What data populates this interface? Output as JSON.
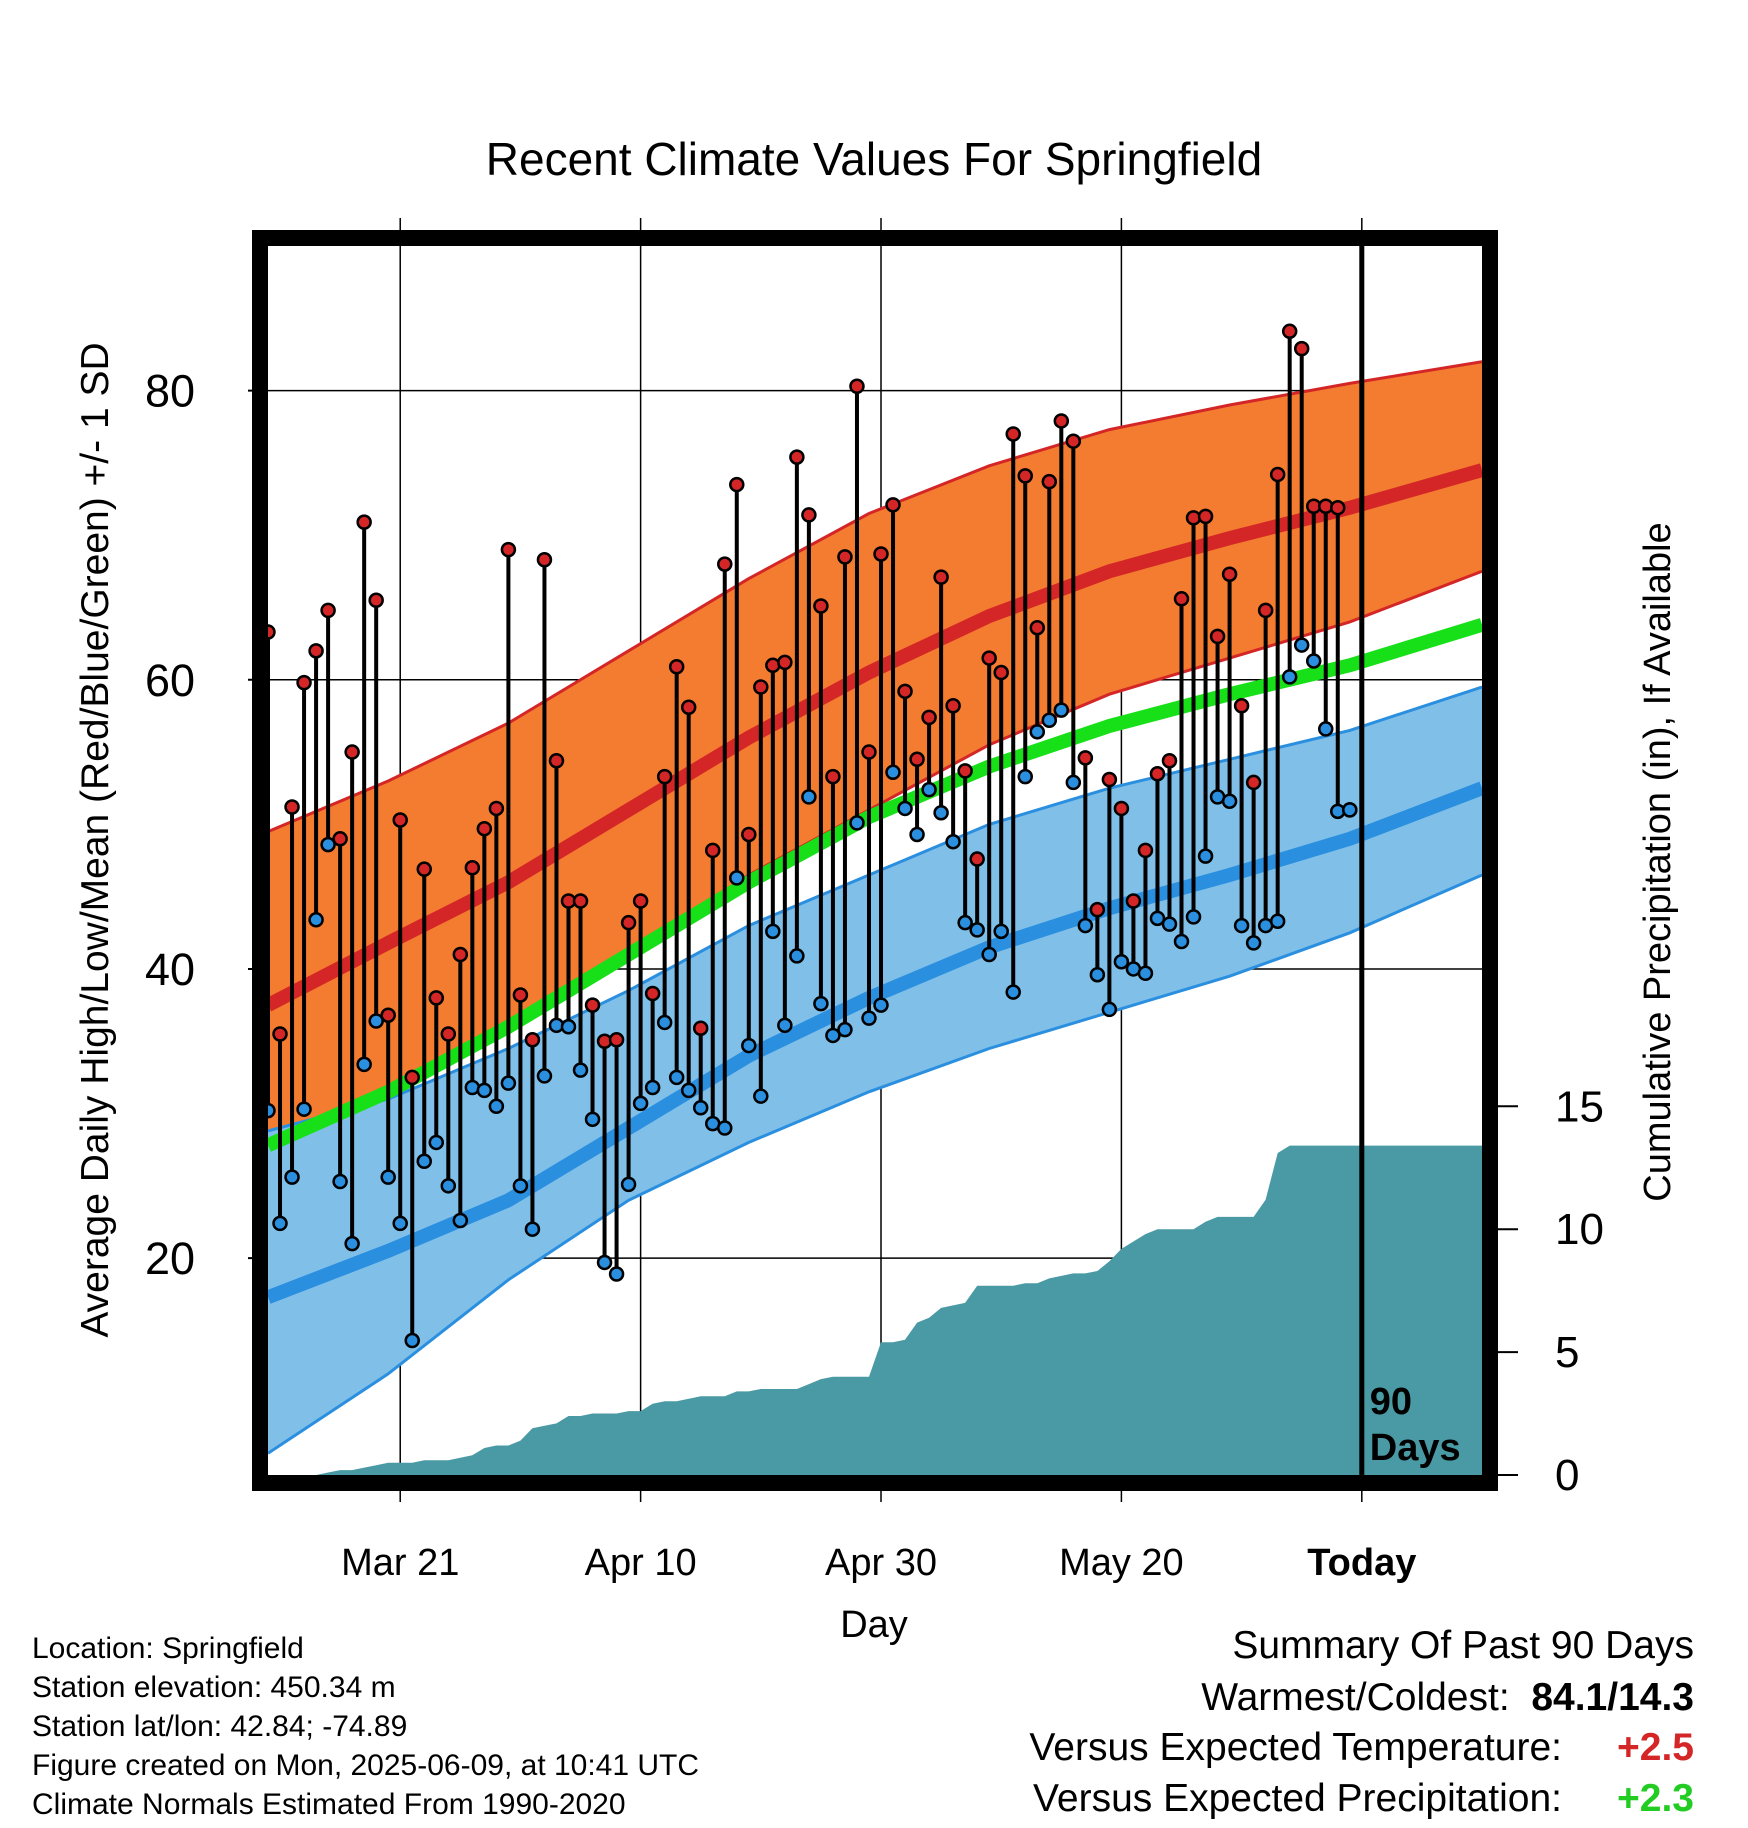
{
  "chart_data": {
    "type": "line",
    "title": "Recent Climate Values For Springfield",
    "xlabel": "Day",
    "ylabel": "Average Daily High/Low/Mean (Red/Blue/Green) +/- 1 SD",
    "y2label": "Cumulative Precipitation (in), If Available",
    "x_tick_labels": [
      "Mar 21",
      "Apr 10",
      "Apr 30",
      "May 20",
      "Today"
    ],
    "x_tick_days": [
      11,
      31,
      51,
      71,
      91
    ],
    "xlim": [
      0,
      101
    ],
    "ylim": [
      5,
      90
    ],
    "y_ticks": [
      20,
      40,
      60,
      80
    ],
    "y2lim": [
      0,
      50
    ],
    "y2_ticks": [
      0,
      5,
      10,
      15
    ],
    "today_marker_day": 91,
    "today_label": "90\nDays",
    "grid": true,
    "normals": {
      "x": [
        0,
        10,
        20,
        30,
        40,
        50,
        60,
        70,
        80,
        90,
        101
      ],
      "high_mean": [
        37.5,
        41.8,
        46.0,
        51.0,
        56.0,
        60.5,
        64.4,
        67.5,
        69.8,
        71.9,
        74.5
      ],
      "high_upper": [
        49.5,
        53.0,
        57.0,
        62.0,
        67.0,
        71.5,
        74.8,
        77.3,
        79.0,
        80.5,
        82.0
      ],
      "high_lower": [
        28.5,
        31.0,
        36.0,
        41.0,
        46.5,
        51.0,
        55.5,
        59.0,
        61.5,
        64.0,
        67.5
      ],
      "mean_line": [
        27.8,
        31.5,
        36.0,
        41.0,
        46.0,
        50.5,
        54.0,
        56.8,
        59.0,
        61.0,
        63.8
      ],
      "low_mean": [
        17.3,
        20.5,
        24.0,
        29.0,
        34.0,
        38.0,
        41.5,
        44.2,
        46.5,
        49.0,
        52.5
      ],
      "low_upper": [
        28.8,
        31.0,
        34.5,
        38.5,
        43.0,
        46.5,
        50.0,
        52.5,
        54.5,
        56.5,
        59.5
      ],
      "low_lower": [
        6.5,
        12.0,
        18.5,
        24.0,
        28.0,
        31.5,
        34.5,
        37.0,
        39.5,
        42.5,
        46.5
      ]
    },
    "series": [
      {
        "name": "High",
        "color": "#d42626",
        "x": [
          0,
          1,
          2,
          3,
          4,
          5,
          6,
          7,
          8,
          9,
          10,
          11,
          12,
          13,
          14,
          15,
          16,
          17,
          18,
          19,
          20,
          21,
          22,
          23,
          24,
          25,
          26,
          27,
          28,
          29,
          30,
          31,
          32,
          33,
          34,
          35,
          36,
          37,
          38,
          39,
          40,
          41,
          42,
          43,
          44,
          45,
          46,
          47,
          48,
          49,
          50,
          51,
          52,
          53,
          54,
          55,
          56,
          57,
          58,
          59,
          60,
          61,
          62,
          63,
          64,
          65,
          66,
          67,
          68,
          69,
          70,
          71,
          72,
          73,
          74,
          75,
          76,
          77,
          78,
          79,
          80,
          81,
          82,
          83,
          84,
          85,
          86,
          87,
          88,
          89,
          90
        ],
        "values": [
          63.3,
          35.5,
          51.2,
          59.8,
          62.0,
          64.8,
          49.0,
          55.0,
          70.9,
          65.5,
          36.8,
          50.3,
          32.5,
          46.9,
          38.0,
          35.5,
          41.0,
          47.0,
          49.7,
          51.1,
          69.0,
          38.2,
          35.1,
          68.3,
          54.4,
          44.7,
          44.7,
          37.5,
          35.0,
          35.1,
          43.2,
          44.7,
          38.3,
          53.3,
          60.9,
          58.1,
          35.9,
          48.2,
          68.0,
          73.5,
          49.3,
          59.5,
          61.0,
          61.2,
          75.4,
          71.4,
          65.1,
          53.3,
          68.5,
          80.3,
          55.0,
          68.7,
          72.1,
          59.2,
          54.5,
          57.4,
          67.1,
          58.2,
          53.7,
          47.6,
          61.5,
          60.5,
          77.0,
          74.1,
          63.6,
          73.7,
          77.9,
          76.5,
          54.6,
          44.1,
          53.1,
          51.1,
          44.7,
          48.2,
          53.5,
          54.4,
          65.6,
          71.2,
          71.3,
          63.0,
          67.3,
          58.2,
          52.9,
          64.8,
          74.2,
          84.1,
          82.9,
          72.0,
          72.0,
          71.9,
          51.0
        ]
      },
      {
        "name": "Low",
        "color": "#2b8fe0",
        "x": [
          0,
          1,
          2,
          3,
          4,
          5,
          6,
          7,
          8,
          9,
          10,
          11,
          12,
          13,
          14,
          15,
          16,
          17,
          18,
          19,
          20,
          21,
          22,
          23,
          24,
          25,
          26,
          27,
          28,
          29,
          30,
          31,
          32,
          33,
          34,
          35,
          36,
          37,
          38,
          39,
          40,
          41,
          42,
          43,
          44,
          45,
          46,
          47,
          48,
          49,
          50,
          51,
          52,
          53,
          54,
          55,
          56,
          57,
          58,
          59,
          60,
          61,
          62,
          63,
          64,
          65,
          66,
          67,
          68,
          69,
          70,
          71,
          72,
          73,
          74,
          75,
          76,
          77,
          78,
          79,
          80,
          81,
          82,
          83,
          84,
          85,
          86,
          87,
          88,
          89,
          90
        ],
        "values": [
          30.2,
          22.4,
          25.6,
          30.3,
          43.4,
          48.6,
          25.3,
          21.0,
          33.4,
          36.4,
          25.6,
          22.4,
          14.3,
          26.7,
          28.0,
          25.0,
          22.6,
          31.8,
          31.6,
          30.5,
          32.1,
          25.0,
          22.0,
          32.6,
          36.1,
          36.0,
          33.0,
          29.6,
          19.7,
          18.9,
          25.1,
          30.7,
          31.8,
          36.3,
          32.5,
          31.6,
          30.4,
          29.3,
          29.0,
          46.3,
          34.7,
          31.2,
          42.6,
          36.1,
          40.9,
          51.9,
          37.6,
          35.4,
          35.8,
          50.1,
          36.6,
          37.5,
          53.6,
          51.1,
          49.3,
          52.4,
          50.8,
          48.8,
          43.2,
          42.7,
          41.0,
          42.6,
          38.4,
          53.3,
          56.4,
          57.2,
          57.9,
          52.9,
          43.0,
          39.6,
          37.2,
          40.5,
          40.0,
          39.7,
          43.5,
          43.1,
          41.9,
          43.6,
          47.8,
          51.9,
          51.6,
          43.0,
          41.8,
          43.0,
          43.3,
          60.2,
          62.4,
          61.3,
          56.6,
          50.9,
          51.0
        ]
      }
    ],
    "precip_cumulative": {
      "x": [
        0,
        4,
        5,
        6,
        7,
        8,
        9,
        10,
        11,
        12,
        13,
        14,
        15,
        16,
        17,
        18,
        19,
        20,
        21,
        22,
        23,
        24,
        25,
        26,
        27,
        28,
        29,
        30,
        31,
        32,
        33,
        34,
        35,
        36,
        37,
        38,
        39,
        40,
        41,
        42,
        43,
        44,
        45,
        46,
        47,
        48,
        49,
        50,
        51,
        52,
        53,
        54,
        55,
        56,
        57,
        58,
        59,
        60,
        61,
        62,
        63,
        64,
        65,
        66,
        67,
        68,
        69,
        70,
        71,
        72,
        73,
        74,
        75,
        76,
        77,
        78,
        79,
        80,
        81,
        82,
        83,
        84,
        85,
        86,
        87,
        88,
        89,
        90,
        91,
        101
      ],
      "values": [
        0,
        0,
        0.1,
        0.2,
        0.2,
        0.3,
        0.4,
        0.5,
        0.5,
        0.5,
        0.6,
        0.6,
        0.6,
        0.7,
        0.8,
        1.1,
        1.2,
        1.2,
        1.4,
        1.9,
        2.0,
        2.1,
        2.4,
        2.4,
        2.5,
        2.5,
        2.5,
        2.6,
        2.6,
        2.9,
        3.0,
        3.0,
        3.1,
        3.2,
        3.2,
        3.2,
        3.4,
        3.4,
        3.5,
        3.5,
        3.5,
        3.5,
        3.7,
        3.9,
        4.0,
        4.0,
        4.0,
        4.0,
        5.4,
        5.4,
        5.5,
        6.2,
        6.4,
        6.8,
        6.9,
        7.0,
        7.7,
        7.7,
        7.7,
        7.7,
        7.8,
        7.8,
        8.0,
        8.1,
        8.2,
        8.2,
        8.3,
        8.7,
        9.2,
        9.5,
        9.8,
        10.0,
        10.0,
        10.0,
        10.0,
        10.3,
        10.5,
        10.5,
        10.5,
        10.5,
        11.2,
        13.1,
        13.4,
        13.4,
        13.4,
        13.4,
        13.4,
        13.4,
        13.4,
        13.4
      ]
    }
  },
  "info": {
    "location": "Location: Springfield",
    "elevation": "Station elevation: 450.34 m",
    "latlon": "Station lat/lon: 42.84; -74.89",
    "created": "Figure created on Mon, 2025-06-09, at 10:41 UTC",
    "normals": "Climate Normals Estimated From 1990-2020"
  },
  "summary": {
    "heading": "Summary Of Past 90 Days",
    "warmest_label": "Warmest/Coldest:",
    "warmest_value": "84.1/14.3",
    "temp_label": "Versus Expected Temperature:",
    "temp_value": "+2.5",
    "temp_color": "#d42626",
    "precip_label": "Versus Expected Precipitation:",
    "precip_value": "+2.3",
    "precip_color": "#22cc22"
  },
  "colors": {
    "high_band": "#f47c30",
    "high_line": "#d42626",
    "low_band": "#80c0e8",
    "low_line": "#2b8fe0",
    "mean_line": "#18e018",
    "precip_fill": "#4a9aa5"
  }
}
